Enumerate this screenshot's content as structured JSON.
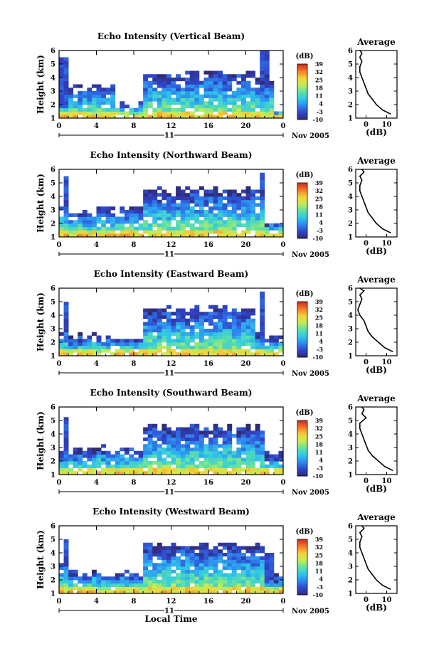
{
  "chart_data": [
    {
      "type": "heatmap",
      "title": "Echo Intensity (Vertical Beam)",
      "ylabel": "Height (km)",
      "xlabel": "",
      "x_ticks": [
        "0",
        "4",
        "8",
        "12",
        "16",
        "20",
        "0"
      ],
      "y_ticks": [
        "1",
        "2",
        "3",
        "4",
        "5",
        "6"
      ],
      "xlim": [
        0,
        24
      ],
      "ylim": [
        1,
        6
      ],
      "date_marker": "11",
      "date_label": "Nov 2005",
      "colorbar": {
        "unit": "(dB)",
        "ticks": [
          "39",
          "32",
          "25",
          "18",
          "11",
          "4",
          "-3",
          "-10"
        ],
        "range": [
          -10,
          39
        ]
      },
      "field": {
        "dx": 0.5,
        "dy": 0.25,
        "segments": [
          {
            "x": [
              0,
              1
            ],
            "top": 2.2
          },
          {
            "x": [
              1,
              6
            ],
            "top": 3.2
          },
          {
            "x": [
              6,
              9
            ],
            "top": 1.9
          },
          {
            "x": [
              9,
              21
            ],
            "top": 4.2
          },
          {
            "x": [
              21,
              23
            ],
            "top": 3.8
          },
          {
            "x": [
              23,
              24
            ],
            "top": 1.5
          }
        ],
        "columns": [
          {
            "x": 0.3,
            "top": 5.4
          },
          {
            "x": 21.7,
            "top": 5.9
          }
        ]
      },
      "profile": {
        "title": "Average",
        "xlabel": "(dB)",
        "x_ticks": [
          "0",
          "10"
        ],
        "xlim": [
          -5,
          15
        ],
        "ylim": [
          1,
          6
        ],
        "x": [
          12,
          8,
          5,
          3,
          1,
          0,
          -1,
          -2,
          -3,
          -3,
          -2,
          -3,
          -2,
          -3
        ],
        "y": [
          1.3,
          1.6,
          2.0,
          2.4,
          2.8,
          3.2,
          3.6,
          4.0,
          4.4,
          4.8,
          5.2,
          5.5,
          5.8,
          6.0
        ]
      }
    },
    {
      "type": "heatmap",
      "title": "Echo Intensity (Northward Beam)",
      "ylabel": "Height (km)",
      "xlabel": "",
      "x_ticks": [
        "0",
        "4",
        "8",
        "12",
        "16",
        "20",
        "0"
      ],
      "y_ticks": [
        "1",
        "2",
        "3",
        "4",
        "5",
        "6"
      ],
      "xlim": [
        0,
        24
      ],
      "ylim": [
        1,
        6
      ],
      "date_marker": "11",
      "date_label": "Nov 2005",
      "colorbar": {
        "unit": "(dB)",
        "ticks": [
          "39",
          "32",
          "25",
          "18",
          "11",
          "4",
          "-3",
          "-10"
        ],
        "range": [
          -10,
          39
        ]
      },
      "field": {
        "dx": 0.5,
        "dy": 0.25,
        "segments": [
          {
            "x": [
              0,
              1
            ],
            "top": 3.2
          },
          {
            "x": [
              1,
              4
            ],
            "top": 2.8
          },
          {
            "x": [
              4,
              9
            ],
            "top": 3.0
          },
          {
            "x": [
              9,
              22
            ],
            "top": 4.3
          },
          {
            "x": [
              22,
              24
            ],
            "top": 2.0
          }
        ],
        "columns": [
          {
            "x": 0.4,
            "top": 5.3
          },
          {
            "x": 21.6,
            "top": 5.6
          }
        ]
      },
      "profile": {
        "title": "Average",
        "xlabel": "(dB)",
        "x_ticks": [
          "0",
          "10"
        ],
        "xlim": [
          -5,
          15
        ],
        "ylim": [
          1,
          6
        ],
        "x": [
          12,
          8,
          5,
          3,
          1,
          0,
          -1,
          -2,
          -3,
          -3,
          -2,
          -3,
          -1,
          -2
        ],
        "y": [
          1.3,
          1.6,
          2.0,
          2.4,
          2.8,
          3.2,
          3.6,
          4.0,
          4.4,
          4.8,
          5.2,
          5.5,
          5.8,
          6.0
        ]
      }
    },
    {
      "type": "heatmap",
      "title": "Echo Intensity (Eastward Beam)",
      "ylabel": "Height (km)",
      "xlabel": "",
      "x_ticks": [
        "0",
        "4",
        "8",
        "12",
        "16",
        "20",
        "0"
      ],
      "y_ticks": [
        "1",
        "2",
        "3",
        "4",
        "5",
        "6"
      ],
      "xlim": [
        0,
        24
      ],
      "ylim": [
        1,
        6
      ],
      "date_marker": "11",
      "date_label": "Nov 2005",
      "colorbar": {
        "unit": "(dB)",
        "ticks": [
          "39",
          "32",
          "25",
          "18",
          "11",
          "4",
          "-3",
          "-10"
        ],
        "range": [
          -10,
          39
        ]
      },
      "field": {
        "dx": 0.5,
        "dy": 0.25,
        "segments": [
          {
            "x": [
              0,
              1
            ],
            "top": 2.7
          },
          {
            "x": [
              1,
              4
            ],
            "top": 2.3
          },
          {
            "x": [
              4,
              9
            ],
            "top": 2.2
          },
          {
            "x": [
              9,
              21
            ],
            "top": 4.4
          },
          {
            "x": [
              21,
              24
            ],
            "top": 2.4
          }
        ],
        "columns": [
          {
            "x": 0.4,
            "top": 5.0
          },
          {
            "x": 21.6,
            "top": 5.7
          }
        ]
      },
      "profile": {
        "title": "Average",
        "xlabel": "(dB)",
        "x_ticks": [
          "0",
          "10"
        ],
        "xlim": [
          -5,
          15
        ],
        "ylim": [
          1,
          6
        ],
        "x": [
          13,
          9,
          6,
          3,
          1,
          0,
          -1,
          -3,
          -4,
          -3,
          -2,
          -3,
          -1,
          -3
        ],
        "y": [
          1.3,
          1.6,
          2.0,
          2.4,
          2.8,
          3.2,
          3.6,
          4.0,
          4.4,
          4.8,
          5.2,
          5.5,
          5.8,
          6.0
        ]
      }
    },
    {
      "type": "heatmap",
      "title": "Echo Intensity (Southward Beam)",
      "ylabel": "Height (km)",
      "xlabel": "",
      "x_ticks": [
        "0",
        "4",
        "8",
        "12",
        "16",
        "20",
        "0"
      ],
      "y_ticks": [
        "1",
        "2",
        "3",
        "4",
        "5",
        "6"
      ],
      "xlim": [
        0,
        24
      ],
      "ylim": [
        1,
        6
      ],
      "date_marker": "11",
      "date_label": "Nov 2005",
      "colorbar": {
        "unit": "(dB)",
        "ticks": [
          "39",
          "32",
          "25",
          "18",
          "11",
          "4",
          "-3",
          "-10"
        ],
        "range": [
          -10,
          39
        ]
      },
      "field": {
        "dx": 0.5,
        "dy": 0.25,
        "segments": [
          {
            "x": [
              0,
              1
            ],
            "top": 2.7
          },
          {
            "x": [
              1,
              4
            ],
            "top": 2.7
          },
          {
            "x": [
              4,
              9
            ],
            "top": 2.8
          },
          {
            "x": [
              9,
              22
            ],
            "top": 4.4
          },
          {
            "x": [
              22,
              24
            ],
            "top": 2.4
          }
        ],
        "columns": [
          {
            "x": 0.4,
            "top": 5.2
          },
          {
            "x": 21.5,
            "top": 4.2
          }
        ]
      },
      "profile": {
        "title": "Average",
        "xlabel": "(dB)",
        "x_ticks": [
          "0",
          "10"
        ],
        "xlim": [
          -5,
          15
        ],
        "ylim": [
          1,
          6
        ],
        "x": [
          13,
          9,
          6,
          3,
          1,
          0,
          -1,
          -2,
          -3,
          -3,
          0,
          -2,
          -1,
          -2
        ],
        "y": [
          1.3,
          1.6,
          2.0,
          2.4,
          2.8,
          3.2,
          3.6,
          4.0,
          4.4,
          4.8,
          5.2,
          5.5,
          5.8,
          6.0
        ]
      }
    },
    {
      "type": "heatmap",
      "title": "Echo Intensity (Westward Beam)",
      "ylabel": "Height (km)",
      "xlabel": "Local Time",
      "x_ticks": [
        "0",
        "4",
        "8",
        "12",
        "16",
        "20",
        "0"
      ],
      "y_ticks": [
        "1",
        "2",
        "3",
        "4",
        "5",
        "6"
      ],
      "xlim": [
        0,
        24
      ],
      "ylim": [
        1,
        6
      ],
      "date_marker": "11",
      "date_label": "Nov 2005",
      "colorbar": {
        "unit": "(dB)",
        "ticks": [
          "39",
          "32",
          "25",
          "18",
          "11",
          "4",
          "-3",
          "-10"
        ],
        "range": [
          -10,
          39
        ]
      },
      "field": {
        "dx": 0.5,
        "dy": 0.25,
        "segments": [
          {
            "x": [
              0,
              1
            ],
            "top": 3.2
          },
          {
            "x": [
              1,
              4
            ],
            "top": 2.5
          },
          {
            "x": [
              4,
              9
            ],
            "top": 2.3
          },
          {
            "x": [
              9,
              22
            ],
            "top": 4.5
          },
          {
            "x": [
              22,
              24
            ],
            "top": 2.1
          }
        ],
        "columns": [
          {
            "x": 0.4,
            "top": 5.0
          },
          {
            "x": 22.3,
            "top": 3.8
          }
        ]
      },
      "profile": {
        "title": "Average",
        "xlabel": "(dB)",
        "x_ticks": [
          "0",
          "10"
        ],
        "xlim": [
          -5,
          15
        ],
        "ylim": [
          1,
          6
        ],
        "x": [
          12,
          8,
          5,
          3,
          1,
          0,
          -1,
          -2,
          -3,
          -3,
          -2,
          -3,
          -1,
          -2
        ],
        "y": [
          1.3,
          1.6,
          2.0,
          2.4,
          2.8,
          3.2,
          3.6,
          4.0,
          4.4,
          4.8,
          5.2,
          5.5,
          5.8,
          6.0
        ]
      }
    }
  ]
}
